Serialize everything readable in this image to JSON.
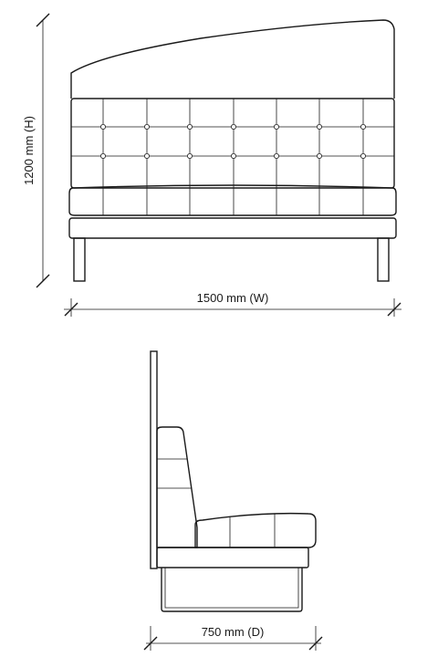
{
  "front_view": {
    "height_label": "1200 mm (H)",
    "width_label": "1500 mm (W)"
  },
  "side_view": {
    "depth_label": "750 mm (D)"
  }
}
